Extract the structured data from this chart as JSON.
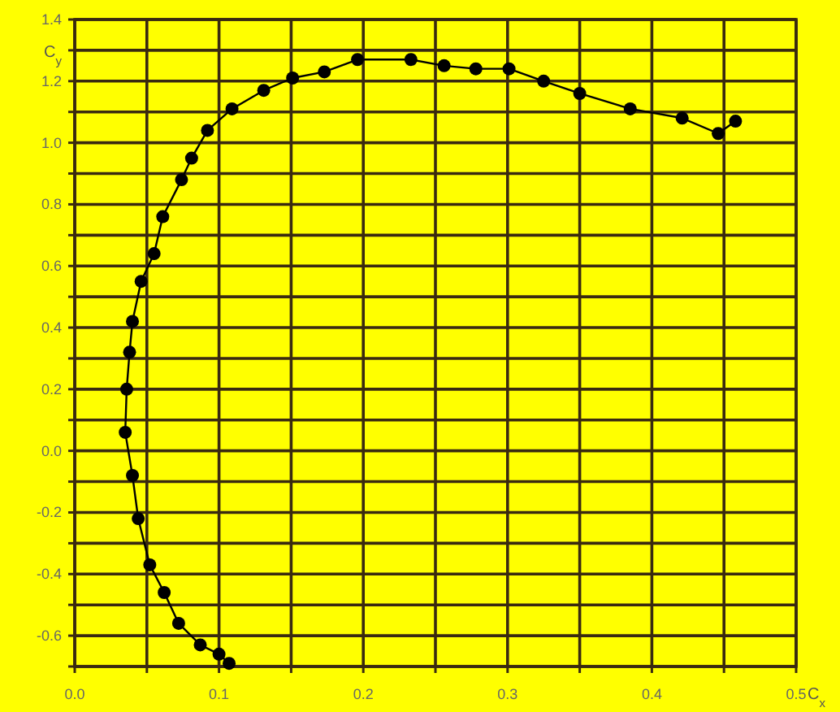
{
  "chart_data": {
    "type": "line",
    "xlabel": "C$_{x}$",
    "ylabel": "C$_{y}$",
    "xlim": [
      0,
      0.5
    ],
    "ylim": [
      -0.7,
      1.4
    ],
    "xticks": [
      {
        "value": 0,
        "label": "0.0"
      },
      {
        "value": 0.05,
        "label": null
      },
      {
        "value": 0.1,
        "label": "0.1"
      },
      {
        "value": 0.15,
        "label": null
      },
      {
        "value": 0.2,
        "label": "0.2"
      },
      {
        "value": 0.25,
        "label": null
      },
      {
        "value": 0.3,
        "label": "0.3"
      },
      {
        "value": 0.35,
        "label": null
      },
      {
        "value": 0.4,
        "label": "0.4"
      },
      {
        "value": 0.45,
        "label": null
      },
      {
        "value": 0.5,
        "label": "0.5"
      }
    ],
    "yticks": [
      {
        "value": -0.7,
        "label": null
      },
      {
        "value": -0.6,
        "label": "-0.6"
      },
      {
        "value": -0.5,
        "label": null
      },
      {
        "value": -0.4,
        "label": "-0.4"
      },
      {
        "value": -0.3,
        "label": null
      },
      {
        "value": -0.2,
        "label": "-0.2"
      },
      {
        "value": -0.1,
        "label": null
      },
      {
        "value": 0,
        "label": "0.0"
      },
      {
        "value": 0.1,
        "label": null
      },
      {
        "value": 0.2,
        "label": "0.2"
      },
      {
        "value": 0.3,
        "label": null
      },
      {
        "value": 0.4,
        "label": "0.4"
      },
      {
        "value": 0.5,
        "label": null
      },
      {
        "value": 0.6,
        "label": "0.6"
      },
      {
        "value": 0.7,
        "label": null
      },
      {
        "value": 0.8,
        "label": "0.8"
      },
      {
        "value": 0.9,
        "label": null
      },
      {
        "value": 1.0,
        "label": "1.0"
      },
      {
        "value": 1.1,
        "label": null
      },
      {
        "value": 1.2,
        "label": "1.2"
      },
      {
        "value": 1.3,
        "label": null
      },
      {
        "value": 1.4,
        "label": "1.4"
      }
    ],
    "grid": true,
    "marker": "circle",
    "line_style": "solid",
    "series": [
      {
        "color": "#000000",
        "x": [
          0.107,
          0.1,
          0.087,
          0.072,
          0.062,
          0.052,
          0.044,
          0.04,
          0.035,
          0.036,
          0.038,
          0.04,
          0.046,
          0.055,
          0.061,
          0.074,
          0.081,
          0.092,
          0.109,
          0.131,
          0.151,
          0.173,
          0.196,
          0.233,
          0.256,
          0.278,
          0.301,
          0.325,
          0.35,
          0.385,
          0.421,
          0.446,
          0.458
        ],
        "values": [
          -0.69,
          -0.66,
          -0.63,
          -0.56,
          -0.46,
          -0.37,
          -0.22,
          -0.08,
          0.06,
          0.2,
          0.32,
          0.42,
          0.55,
          0.64,
          0.76,
          0.88,
          0.95,
          1.04,
          1.11,
          1.17,
          1.21,
          1.23,
          1.27,
          1.27,
          1.25,
          1.24,
          1.24,
          1.2,
          1.16,
          1.11,
          1.08,
          1.03,
          1.07
        ]
      }
    ]
  }
}
